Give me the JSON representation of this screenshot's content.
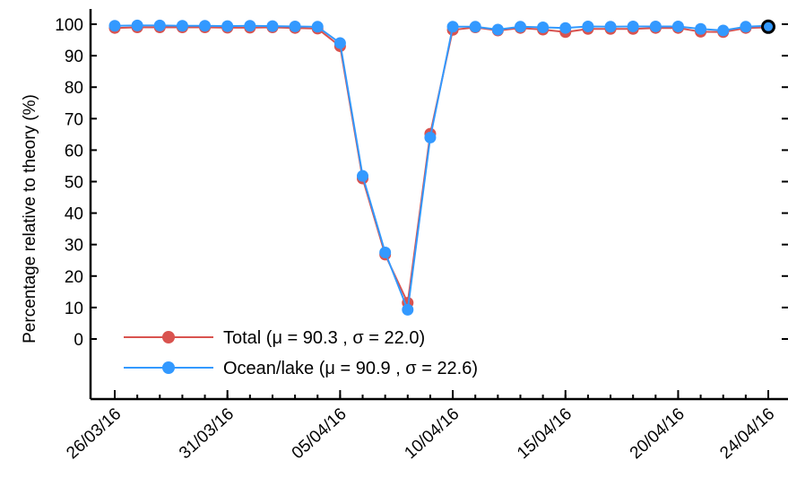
{
  "chart_data": {
    "type": "line",
    "title": "",
    "xlabel": "",
    "ylabel": "Percentage relative to theory (%)",
    "ylim": [
      -20,
      100
    ],
    "yticks": [
      0,
      10,
      20,
      30,
      40,
      50,
      60,
      70,
      80,
      90,
      100
    ],
    "x_range": [
      "26/03/16",
      "24/04/16"
    ],
    "x_tick_labels": [
      "26/03/16",
      "31/03/16",
      "05/04/16",
      "10/04/16",
      "15/04/16",
      "20/04/16",
      "24/04/16"
    ],
    "x": [
      "26/03/16",
      "27/03/16",
      "28/03/16",
      "29/03/16",
      "30/03/16",
      "31/03/16",
      "01/04/16",
      "02/04/16",
      "03/04/16",
      "04/04/16",
      "05/04/16",
      "06/04/16",
      "07/04/16",
      "08/04/16",
      "09/04/16",
      "10/04/16",
      "11/04/16",
      "12/04/16",
      "13/04/16",
      "14/04/16",
      "15/04/16",
      "16/04/16",
      "17/04/16",
      "18/04/16",
      "19/04/16",
      "20/04/16",
      "21/04/16",
      "22/04/16",
      "23/04/16",
      "24/04/16"
    ],
    "grid": false,
    "legend_position": "bottom-left",
    "series": [
      {
        "name": "Total (μ = 90.3 , σ = 22.0)",
        "color": "#d9534f",
        "values": [
          98.8,
          99.0,
          99.0,
          99.0,
          99.0,
          98.9,
          98.9,
          99.0,
          98.8,
          98.6,
          93.0,
          51.0,
          26.8,
          11.5,
          65.2,
          98.2,
          99.0,
          98.0,
          98.8,
          98.3,
          97.5,
          98.5,
          98.5,
          98.5,
          98.8,
          98.8,
          97.6,
          97.5,
          98.8,
          99.0
        ]
      },
      {
        "name": "Ocean/lake (μ = 90.9 , σ = 22.6)",
        "color": "#3399ff",
        "values": [
          99.5,
          99.6,
          99.6,
          99.5,
          99.5,
          99.4,
          99.5,
          99.4,
          99.3,
          99.2,
          94.0,
          51.8,
          27.5,
          9.3,
          64.0,
          99.2,
          99.2,
          98.3,
          99.2,
          99.0,
          98.8,
          99.3,
          99.2,
          99.3,
          99.3,
          99.3,
          98.5,
          98.0,
          99.2,
          99.5
        ]
      }
    ],
    "highlight_point": {
      "x": "24/04/16",
      "y": 99.2,
      "color": "#000000"
    }
  }
}
